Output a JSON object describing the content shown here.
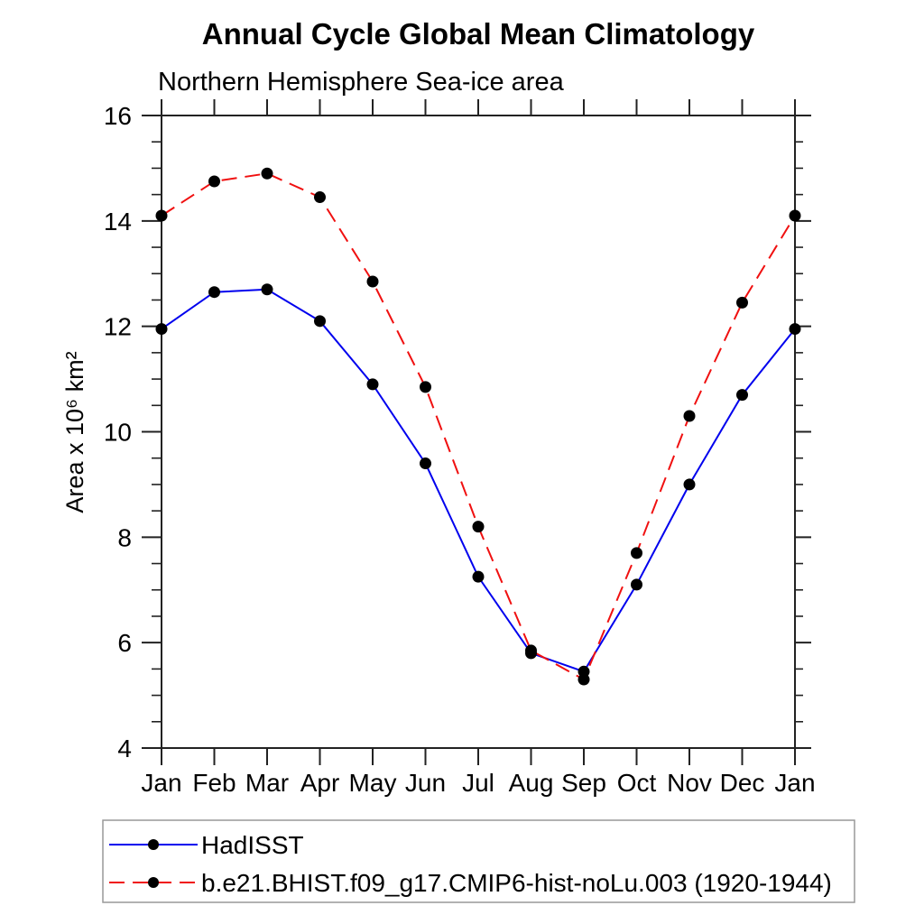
{
  "chart_data": {
    "type": "line",
    "title": "Annual Cycle Global Mean Climatology",
    "subtitle": "Northern Hemisphere Sea-ice area",
    "ylabel": "Area x 10⁶ km²",
    "xlabel": "",
    "categories": [
      "Jan",
      "Feb",
      "Mar",
      "Apr",
      "May",
      "Jun",
      "Jul",
      "Aug",
      "Sep",
      "Oct",
      "Nov",
      "Dec",
      "Jan"
    ],
    "ylim": [
      4,
      16
    ],
    "yticks": [
      4,
      6,
      8,
      10,
      12,
      14,
      16
    ],
    "y_minor_step": 0.5,
    "grid": false,
    "legend_position": "bottom-left-box",
    "series": [
      {
        "name": "HadISST",
        "line_style": "solid",
        "color": "#0000ee",
        "marker": "circle",
        "marker_color": "#000000",
        "values": [
          11.95,
          12.65,
          12.7,
          12.1,
          10.9,
          9.4,
          7.25,
          5.8,
          5.45,
          7.1,
          9.0,
          10.7,
          11.95
        ]
      },
      {
        "name": "b.e21.BHIST.f09_g17.CMIP6-hist-noLu.003 (1920-1944)",
        "line_style": "dashed",
        "color": "#f01010",
        "marker": "circle",
        "marker_color": "#000000",
        "values": [
          14.1,
          14.75,
          14.9,
          14.45,
          12.85,
          10.85,
          8.2,
          5.85,
          5.3,
          7.7,
          10.3,
          12.45,
          14.1
        ]
      }
    ],
    "colors": {
      "axis": "#222222",
      "legend_border": "#999999",
      "background": "#ffffff"
    }
  }
}
